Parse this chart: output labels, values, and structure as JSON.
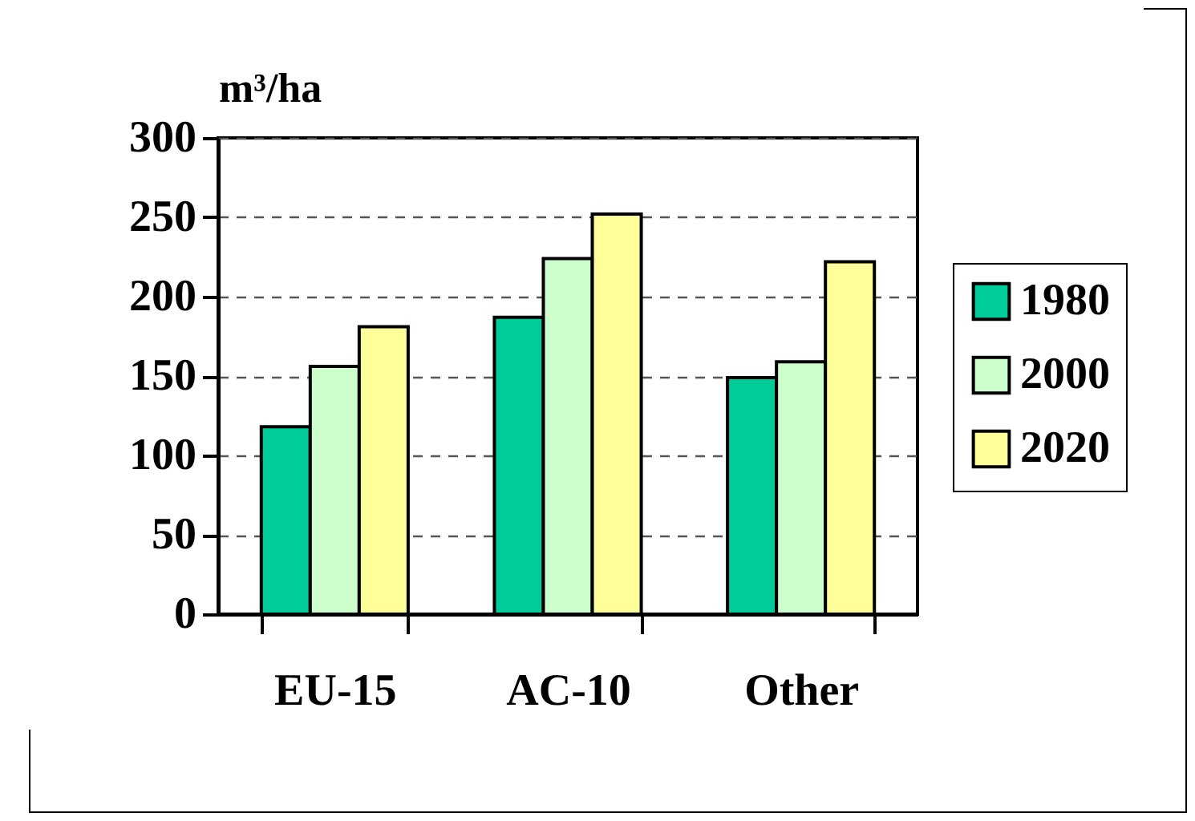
{
  "chart_data": {
    "type": "bar",
    "ylabel": "m³/ha",
    "categories": [
      "EU-15",
      "AC-10",
      "Other"
    ],
    "series": [
      {
        "name": "1980",
        "color": "#00cc99",
        "values": [
          118,
          187,
          149
        ]
      },
      {
        "name": "2000",
        "color": "#ccffcc",
        "values": [
          156,
          224,
          159
        ]
      },
      {
        "name": "2020",
        "color": "#ffff99",
        "values": [
          181,
          252,
          222
        ]
      }
    ],
    "ylim": [
      0,
      300
    ],
    "yticks": [
      0,
      50,
      100,
      150,
      200,
      250,
      300
    ],
    "grid": "y",
    "line_style": "dashed",
    "legend": "right"
  }
}
